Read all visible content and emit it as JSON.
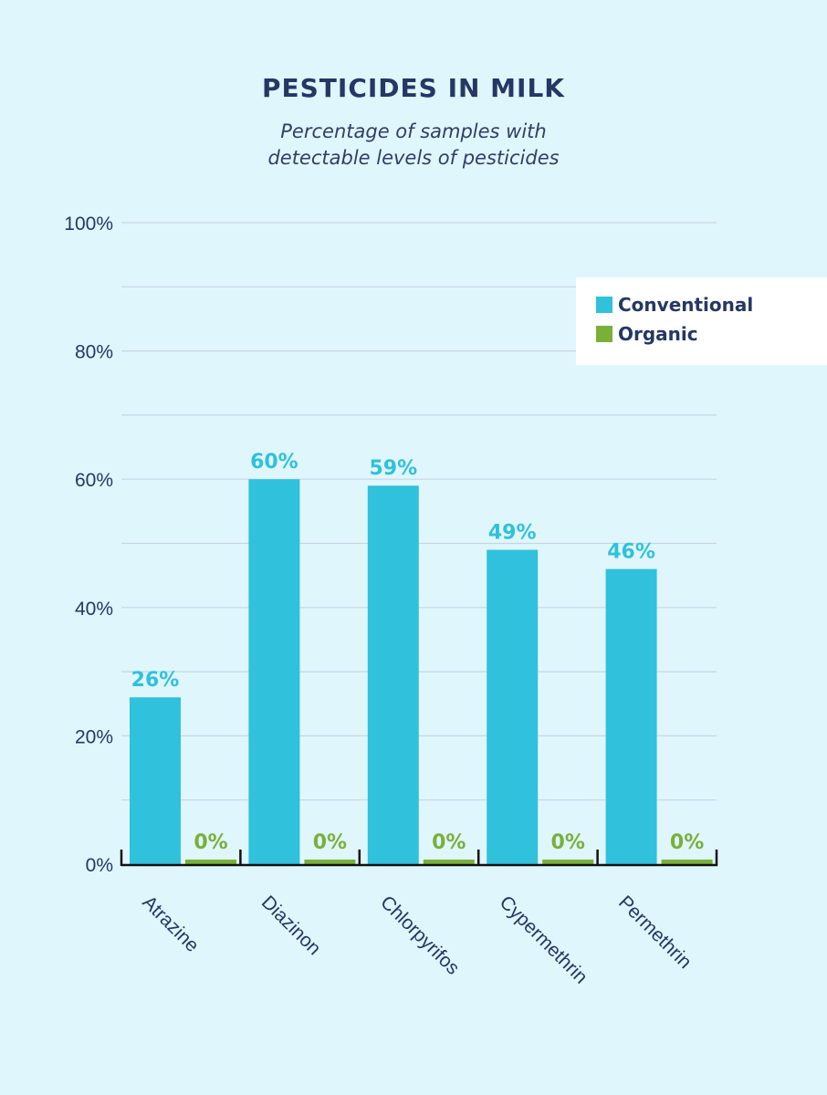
{
  "chart_data": {
    "type": "bar",
    "title": "PESTICIDES IN MILK",
    "subtitle_lines": [
      "Percentage of samples with",
      "detectable levels of pesticides"
    ],
    "xlabel": "",
    "ylabel": "",
    "categories": [
      "Atrazine",
      "Diazinon",
      "Chlorpyrifos",
      "Cypermethrin",
      "Permethrin"
    ],
    "series": [
      {
        "name": "Conventional",
        "color": "#30c1dc",
        "values": [
          26,
          60,
          59,
          49,
          46
        ],
        "labels": [
          "26%",
          "60%",
          "59%",
          "49%",
          "46%"
        ]
      },
      {
        "name": "Organic",
        "color": "#79b03a",
        "values": [
          0,
          0,
          0,
          0,
          0
        ],
        "labels": [
          "0%",
          "0%",
          "0%",
          "0%",
          "0%"
        ]
      }
    ],
    "ylim": [
      0,
      100
    ],
    "yticks": [
      0,
      20,
      40,
      60,
      80,
      100
    ],
    "ytick_labels": [
      "0%",
      "20%",
      "40%",
      "60%",
      "80%",
      "100%"
    ],
    "gridlines_every": 10,
    "grid": true,
    "legend_position": "top-right"
  },
  "colors": {
    "background": "#e0f6fd",
    "text": "#253763",
    "grid": "#c5d6e0",
    "axis": "#111111"
  }
}
